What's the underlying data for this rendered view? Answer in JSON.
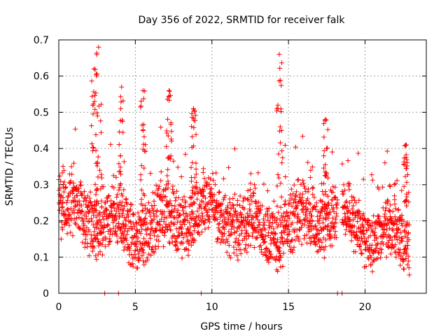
{
  "chart_data": {
    "type": "scatter",
    "title": "Day 356 of 2022, SRMTID for receiver falk",
    "xlabel": "GPS time / hours",
    "ylabel": "SRMTID / TECUs",
    "xlim": [
      0,
      24
    ],
    "ylim": [
      0,
      0.7
    ],
    "xticks": [
      "0",
      "5",
      "10",
      "15",
      "20"
    ],
    "yticks": [
      "0",
      "0.1",
      "0.2",
      "0.3",
      "0.4",
      "0.5",
      "0.6",
      "0.7"
    ],
    "grid": true,
    "marker": "+",
    "color": "#ff0000",
    "segments": [
      {
        "start": 0.0,
        "end": 18.2,
        "base": 0.2,
        "amp": 0.07
      },
      {
        "start": 18.5,
        "end": 22.9,
        "base": 0.17,
        "amp": 0.06
      }
    ],
    "peaks": [
      {
        "x": 2.3,
        "y": 0.62
      },
      {
        "x": 2.6,
        "y": 0.68
      },
      {
        "x": 4.1,
        "y": 0.57
      },
      {
        "x": 5.5,
        "y": 0.56
      },
      {
        "x": 7.2,
        "y": 0.56
      },
      {
        "x": 8.8,
        "y": 0.51
      },
      {
        "x": 14.4,
        "y": 0.66
      },
      {
        "x": 17.4,
        "y": 0.48
      },
      {
        "x": 22.7,
        "y": 0.41
      }
    ],
    "zero_points": [
      3.0,
      3.9,
      9.3,
      18.2,
      18.5
    ]
  }
}
